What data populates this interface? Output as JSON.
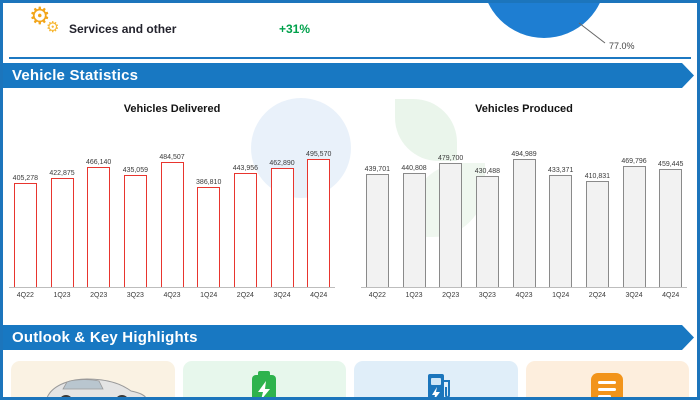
{
  "top": {
    "services_label": "Services and other",
    "services_change": "+31%"
  },
  "sections": {
    "statistics_title": "Vehicle Statistics",
    "outlook_title": "Outlook & Key Highlights"
  },
  "chart_data": [
    {
      "type": "bar",
      "title": "Vehicles Delivered",
      "categories": [
        "4Q22",
        "1Q23",
        "2Q23",
        "3Q23",
        "4Q23",
        "1Q24",
        "2Q24",
        "3Q24",
        "4Q24"
      ],
      "values": [
        405278,
        422875,
        466140,
        435059,
        484507,
        386810,
        443956,
        462890,
        495570
      ],
      "labels": [
        "405,278",
        "422,875",
        "466,140",
        "435,059",
        "484,507",
        "386,810",
        "443,956",
        "462,890",
        "495,570"
      ],
      "bar_fill": "#ffffff",
      "bar_border": "#e8352e",
      "ylim": [
        0,
        500000
      ],
      "grid": false,
      "legend": "none"
    },
    {
      "type": "bar",
      "title": "Vehicles Produced",
      "categories": [
        "4Q22",
        "1Q23",
        "2Q23",
        "3Q23",
        "4Q23",
        "1Q24",
        "2Q24",
        "3Q24",
        "4Q24"
      ],
      "values": [
        439701,
        440808,
        479700,
        430488,
        494989,
        433371,
        410831,
        469796,
        459445
      ],
      "labels": [
        "439,701",
        "440,808",
        "479,700",
        "430,488",
        "494,989",
        "433,371",
        "410,831",
        "469,796",
        "459,445"
      ],
      "bar_fill": "#f2f2f2",
      "bar_border": "#8a8a8a",
      "ylim": [
        0,
        500000
      ],
      "grid": false,
      "legend": "none"
    },
    {
      "type": "pie",
      "labels": [
        "77.0%"
      ],
      "values": [
        77.0
      ],
      "colors": [
        "#1e7ed2"
      ],
      "note_label": "77.0%"
    }
  ],
  "pie": {
    "visible_label": "77.0%",
    "slice_color": "#1e7ed2"
  },
  "cards": [
    {
      "icon": "car-icon"
    },
    {
      "icon": "battery-icon"
    },
    {
      "icon": "ev-charger-icon"
    },
    {
      "icon": "checklist-icon"
    }
  ],
  "colors": {
    "accent_blue": "#1878c2",
    "border_blue": "#1c75bc",
    "delivered_red": "#e8352e",
    "produced_gray": "#8a8a8a",
    "green_positive": "#00a14b",
    "gear_orange": "#f2a51a"
  }
}
